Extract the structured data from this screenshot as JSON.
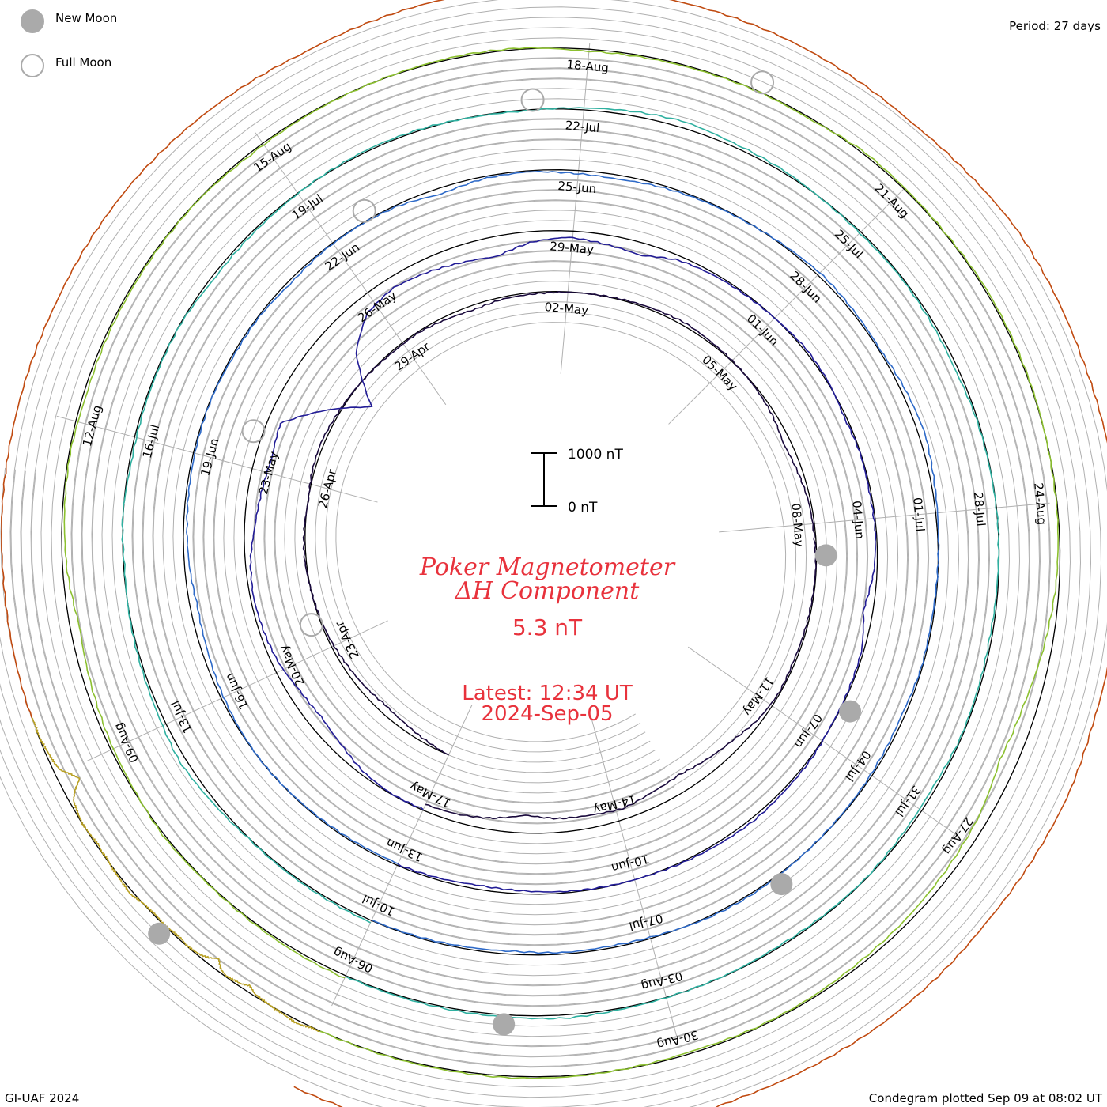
{
  "legend": {
    "new_moon": "New Moon",
    "full_moon": "Full Moon",
    "period": "Period: 27 days"
  },
  "footer": {
    "left": "GI-UAF 2024",
    "right": "Condegram plotted Sep 09 at 08:02 UT"
  },
  "colors": {
    "title_red": "#e8323c",
    "grid": "#b0b0b0",
    "baseline": "#000000",
    "moon_fill": "#aaaaaa",
    "moon_ring": "#aaaaaa"
  },
  "chart_data": {
    "type": "condegram",
    "title": "Poker Magnetometer",
    "title_line2": "ΔH Component",
    "current_value": "5.3 nT",
    "latest_time": "Latest: 12:34 UT",
    "latest_date": "2024-Sep-05",
    "scale_bar": {
      "top_label": "1000 nT",
      "bottom_label": "0 nT",
      "value_nT": 1000
    },
    "period_days": 27,
    "start_date": "2024-04-20",
    "end_date": "2024-09-05",
    "date_labels": [
      {
        "label": "23-Apr"
      },
      {
        "label": "26-Apr"
      },
      {
        "label": "29-Apr"
      },
      {
        "label": "02-May"
      },
      {
        "label": "05-May"
      },
      {
        "label": "08-May"
      },
      {
        "label": "11-May"
      },
      {
        "label": "14-May"
      },
      {
        "label": "17-May"
      },
      {
        "label": "20-May"
      },
      {
        "label": "23-May"
      },
      {
        "label": "26-May"
      },
      {
        "label": "29-May"
      },
      {
        "label": "01-Jun"
      },
      {
        "label": "04-Jun"
      },
      {
        "label": "07-Jun"
      },
      {
        "label": "10-Jun"
      },
      {
        "label": "13-Jun"
      },
      {
        "label": "16-Jun"
      },
      {
        "label": "19-Jun"
      },
      {
        "label": "22-Jun"
      },
      {
        "label": "25-Jun"
      },
      {
        "label": "28-Jun"
      },
      {
        "label": "01-Jul"
      },
      {
        "label": "04-Jul"
      },
      {
        "label": "07-Jul"
      },
      {
        "label": "10-Jul"
      },
      {
        "label": "13-Jul"
      },
      {
        "label": "16-Jul"
      },
      {
        "label": "19-Jul"
      },
      {
        "label": "22-Jul"
      },
      {
        "label": "25-Jul"
      },
      {
        "label": "28-Jul"
      },
      {
        "label": "31-Jul"
      },
      {
        "label": "03-Aug"
      },
      {
        "label": "06-Aug"
      },
      {
        "label": "09-Aug"
      },
      {
        "label": "12-Aug"
      },
      {
        "label": "15-Aug"
      },
      {
        "label": "18-Aug"
      },
      {
        "label": "21-Aug"
      },
      {
        "label": "24-Aug"
      },
      {
        "label": "27-Aug"
      },
      {
        "label": "30-Aug"
      }
    ],
    "moon_phases": [
      {
        "type": "full",
        "date": "2024-04-23"
      },
      {
        "type": "new",
        "date": "2024-05-08"
      },
      {
        "type": "full",
        "date": "2024-05-23"
      },
      {
        "type": "new",
        "date": "2024-06-06"
      },
      {
        "type": "full",
        "date": "2024-06-22"
      },
      {
        "type": "new",
        "date": "2024-07-05"
      },
      {
        "type": "full",
        "date": "2024-07-21"
      },
      {
        "type": "new",
        "date": "2024-08-04"
      },
      {
        "type": "full",
        "date": "2024-08-19"
      },
      {
        "type": "new",
        "date": "2024-09-03"
      }
    ],
    "series": [
      {
        "cycle": 1,
        "color": "#1a0a3c",
        "dH_nT": [
          0,
          -60,
          -120,
          -150,
          -110,
          -80,
          -40,
          -20,
          0,
          30,
          20,
          -10,
          40,
          60,
          30,
          10,
          -10,
          -30,
          -20,
          -60,
          -90,
          -40,
          -30,
          -10,
          0,
          20,
          40,
          60,
          30,
          10,
          -20,
          -60,
          -140,
          -90,
          -40,
          -30,
          -10,
          -20,
          -30,
          -40,
          -20,
          -70,
          -180,
          -250,
          -320,
          -280,
          -200,
          -240,
          -260,
          -340,
          -220,
          -150,
          -120
        ]
      },
      {
        "cycle": 2,
        "color": "#221c96",
        "dH_nT": [
          -20,
          -10,
          -60,
          -180,
          -260,
          -220,
          -120,
          -80,
          -60,
          -100,
          -200,
          -260,
          -310,
          -240,
          -900,
          -1600,
          -700,
          -300,
          -200,
          -250,
          -320,
          -380,
          -200,
          -120,
          -180,
          -240,
          -80,
          -40,
          -20,
          0,
          40,
          20,
          -40,
          -10,
          -30,
          -20,
          -60,
          -180,
          -40,
          -20,
          -10,
          30,
          40,
          60,
          40,
          20,
          0,
          -10,
          -30,
          -60,
          -80,
          -40,
          -20
        ]
      },
      {
        "cycle": 3,
        "color": "#2e6ac8",
        "dH_nT": [
          -40,
          -30,
          -20,
          -10,
          0,
          -20,
          -60,
          -110,
          -140,
          -90,
          -60,
          -40,
          -20,
          -10,
          -30,
          -20,
          -60,
          -20,
          -10,
          -30,
          -120,
          -40,
          -20,
          -60,
          -80,
          -40,
          -20,
          -10,
          20,
          60,
          40,
          20,
          80,
          120,
          60,
          20,
          -10,
          -30,
          -20,
          -60,
          -40,
          -20,
          -10,
          10,
          30,
          20,
          -20,
          -40,
          -30,
          -60,
          -40,
          -20,
          -10
        ]
      },
      {
        "cycle": 4,
        "color": "#2fb0a0",
        "dH_nT": [
          40,
          30,
          20,
          10,
          60,
          120,
          60,
          30,
          10,
          -20,
          10,
          -40,
          -30,
          -20,
          -10,
          -60,
          -40,
          -20,
          10,
          30,
          20,
          -10,
          -20,
          30,
          80,
          120,
          60,
          40,
          -10,
          -30,
          -20,
          -40,
          -60,
          -20,
          -10,
          0,
          -20,
          -40,
          -30,
          -20,
          -60,
          -40,
          -10,
          -20,
          -30,
          -10,
          0,
          20,
          60,
          40,
          30,
          20,
          10
        ]
      },
      {
        "cycle": 5,
        "color": "#8cc030",
        "dH_nT": [
          50,
          40,
          20,
          10,
          30,
          -20,
          -60,
          -120,
          -180,
          -80,
          -40,
          -20,
          -60,
          -40,
          -30,
          -20,
          -10,
          -40,
          -20,
          -10,
          10,
          30,
          20,
          -40,
          -30,
          -20,
          -10,
          -30,
          40,
          20,
          10,
          30,
          20,
          10,
          -10,
          -20,
          -60,
          -150,
          -260,
          -320,
          -180,
          -120,
          -80,
          -60,
          -30,
          -20,
          -40,
          -10,
          20,
          30,
          20,
          10,
          0
        ]
      },
      {
        "cycle": 6,
        "color": "#b8a024",
        "dH_nT": [
          20,
          10,
          40,
          60,
          40,
          20,
          10,
          -10,
          -20,
          -40,
          -120,
          -60,
          -40,
          -20,
          -60,
          -200,
          -100,
          -40,
          -20,
          -10,
          -40,
          -30,
          -20,
          -10,
          -30,
          -20,
          -10,
          20,
          60,
          40,
          30,
          20,
          10,
          -20,
          -10,
          -40,
          -20,
          -10,
          0,
          -20,
          -50,
          -80,
          -200,
          -380,
          -260,
          -120,
          -80,
          -60,
          -40,
          -20,
          -10,
          -20,
          -10
        ]
      },
      {
        "cycle": 7,
        "color": "#c04a10",
        "dH_nT": [
          20,
          40,
          60,
          30,
          10,
          -20,
          -60,
          -40,
          -20,
          -30,
          -60,
          -40,
          -20,
          -60,
          -40,
          -20,
          -10,
          -40,
          -60,
          -40,
          -20,
          -80,
          -120,
          -80,
          -40,
          -20,
          -10,
          -20,
          -40,
          -20,
          -60,
          -100,
          -60,
          -30,
          -10,
          -20,
          -40,
          -30,
          -20,
          -10,
          -20,
          -10,
          0
        ]
      }
    ]
  }
}
